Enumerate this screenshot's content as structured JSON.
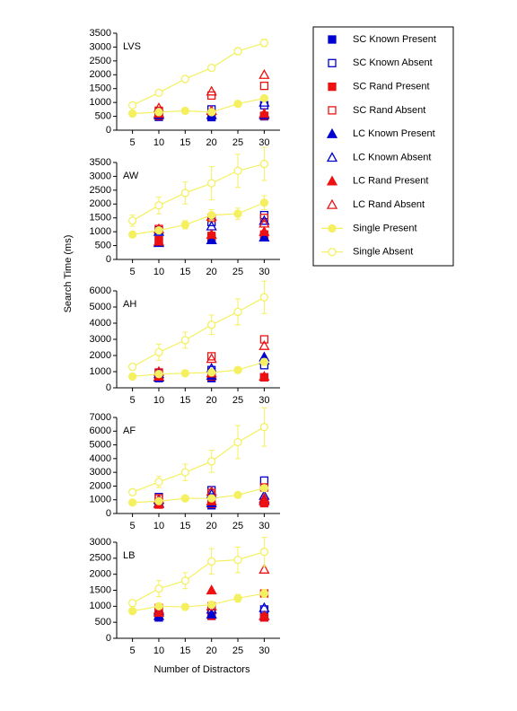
{
  "chart_data": {
    "type": "line",
    "x_label": "Number of Distractors",
    "y_label": "Search Time (ms)",
    "x": [
      5,
      10,
      15,
      20,
      25,
      30
    ],
    "xlim": [
      2,
      33
    ],
    "xticks": [
      5,
      10,
      15,
      20,
      25,
      30
    ],
    "legend": [
      {
        "name": "SC Known Present",
        "color": "#0000d0",
        "marker": "square",
        "filled": true,
        "line": false
      },
      {
        "name": "SC Known Absent",
        "color": "#0000d0",
        "marker": "square",
        "filled": false,
        "line": false
      },
      {
        "name": "SC Rand Present",
        "color": "#ee1111",
        "marker": "square",
        "filled": true,
        "line": false
      },
      {
        "name": "SC Rand Absent",
        "color": "#ee1111",
        "marker": "square",
        "filled": false,
        "line": false
      },
      {
        "name": "LC Known Present",
        "color": "#0000d0",
        "marker": "triangle",
        "filled": true,
        "line": false
      },
      {
        "name": "LC Known Absent",
        "color": "#0000d0",
        "marker": "triangle",
        "filled": false,
        "line": false
      },
      {
        "name": "LC Rand Present",
        "color": "#ee1111",
        "marker": "triangle",
        "filled": true,
        "line": false
      },
      {
        "name": "LC Rand Absent",
        "color": "#ee1111",
        "marker": "triangle",
        "filled": false,
        "line": false
      },
      {
        "name": "Single Present",
        "color": "#f4f060",
        "marker": "circle",
        "filled": true,
        "line": true
      },
      {
        "name": "Single Absent",
        "color": "#f4f060",
        "marker": "circle",
        "filled": false,
        "line": true
      }
    ],
    "panels": [
      {
        "title": "LVS",
        "ylim": [
          0,
          3500
        ],
        "yticks": [
          0,
          500,
          1000,
          1500,
          2000,
          2500,
          3000,
          3500
        ],
        "series": [
          {
            "values": [
              null,
              480,
              null,
              470,
              null,
              500
            ]
          },
          {
            "values": [
              null,
              650,
              null,
              750,
              null,
              900
            ]
          },
          {
            "values": [
              null,
              520,
              null,
              600,
              null,
              520
            ]
          },
          {
            "values": [
              null,
              700,
              null,
              1250,
              null,
              1600
            ]
          },
          {
            "values": [
              null,
              550,
              null,
              550,
              null,
              550
            ]
          },
          {
            "values": [
              null,
              600,
              null,
              700,
              null,
              1000
            ]
          },
          {
            "values": [
              null,
              600,
              null,
              700,
              null,
              600
            ]
          },
          {
            "values": [
              null,
              800,
              null,
              1400,
              null,
              2000
            ]
          },
          {
            "values": [
              600,
              650,
              700,
              650,
              950,
              1150
            ],
            "errors": [
              40,
              40,
              40,
              40,
              40,
              60
            ]
          },
          {
            "values": [
              900,
              1350,
              1850,
              2250,
              2850,
              3150
            ],
            "errors": [
              50,
              60,
              80,
              100,
              120,
              130
            ]
          }
        ]
      },
      {
        "title": "AW",
        "ylim": [
          0,
          3500
        ],
        "yticks": [
          0,
          500,
          1000,
          1500,
          2000,
          2500,
          3000,
          3500
        ],
        "series": [
          {
            "values": [
              null,
              650,
              null,
              750,
              null,
              850
            ]
          },
          {
            "values": [
              null,
              1050,
              null,
              1350,
              null,
              1600
            ]
          },
          {
            "values": [
              null,
              700,
              null,
              850,
              null,
              900
            ]
          },
          {
            "values": [
              null,
              1100,
              null,
              1500,
              null,
              1500
            ]
          },
          {
            "values": [
              null,
              600,
              null,
              700,
              null,
              800
            ]
          },
          {
            "values": [
              null,
              1000,
              null,
              1200,
              null,
              1400
            ]
          },
          {
            "values": [
              null,
              650,
              null,
              900,
              null,
              1000
            ]
          },
          {
            "values": [
              null,
              1100,
              null,
              1550,
              null,
              1300
            ]
          },
          {
            "values": [
              900,
              1050,
              1250,
              1600,
              1650,
              2050
            ],
            "errors": [
              80,
              100,
              150,
              200,
              200,
              250
            ]
          },
          {
            "values": [
              1400,
              1950,
              2400,
              2750,
              3200,
              3450
            ],
            "errors": [
              200,
              300,
              400,
              600,
              600,
              600
            ]
          }
        ]
      },
      {
        "title": "AH",
        "ylim": [
          0,
          6000
        ],
        "yticks": [
          0,
          1000,
          2000,
          3000,
          4000,
          5000,
          6000
        ],
        "series": [
          {
            "values": [
              null,
              600,
              null,
              600,
              null,
              650
            ]
          },
          {
            "values": [
              null,
              900,
              null,
              1100,
              null,
              1400
            ]
          },
          {
            "values": [
              null,
              650,
              null,
              700,
              null,
              650
            ]
          },
          {
            "values": [
              null,
              950,
              null,
              1950,
              null,
              3000
            ]
          },
          {
            "values": [
              null,
              650,
              null,
              750,
              null,
              1900
            ]
          },
          {
            "values": [
              null,
              850,
              null,
              1200,
              null,
              1700
            ]
          },
          {
            "values": [
              null,
              700,
              null,
              900,
              null,
              700
            ]
          },
          {
            "values": [
              null,
              1000,
              null,
              1800,
              null,
              2600
            ]
          },
          {
            "values": [
              700,
              850,
              900,
              950,
              1100,
              1600
            ],
            "errors": [
              60,
              80,
              80,
              100,
              100,
              200
            ]
          },
          {
            "values": [
              1300,
              2200,
              2950,
              3900,
              4700,
              5600
            ],
            "errors": [
              200,
              500,
              500,
              600,
              800,
              1000
            ]
          }
        ]
      },
      {
        "title": "AF",
        "ylim": [
          0,
          7000
        ],
        "yticks": [
          0,
          1000,
          2000,
          3000,
          4000,
          5000,
          6000,
          7000
        ],
        "series": [
          {
            "values": [
              null,
              700,
              null,
              600,
              null,
              800
            ]
          },
          {
            "values": [
              null,
              1200,
              null,
              1700,
              null,
              2400
            ]
          },
          {
            "values": [
              null,
              650,
              null,
              700,
              null,
              750
            ]
          },
          {
            "values": [
              null,
              1100,
              null,
              1500,
              null,
              1900
            ]
          },
          {
            "values": [
              null,
              750,
              null,
              750,
              null,
              1000
            ]
          },
          {
            "values": [
              null,
              1000,
              null,
              1400,
              null,
              1300
            ]
          },
          {
            "values": [
              null,
              700,
              null,
              900,
              null,
              900
            ]
          },
          {
            "values": [
              null,
              1050,
              null,
              1600,
              null,
              1100
            ]
          },
          {
            "values": [
              800,
              900,
              1100,
              1100,
              1350,
              1850
            ],
            "errors": [
              60,
              80,
              100,
              100,
              120,
              200
            ]
          },
          {
            "values": [
              1550,
              2300,
              3000,
              3800,
              5200,
              6300
            ],
            "errors": [
              200,
              400,
              600,
              800,
              1200,
              1400
            ]
          }
        ]
      },
      {
        "title": "LB",
        "ylim": [
          0,
          3000
        ],
        "yticks": [
          0,
          500,
          1000,
          1500,
          2000,
          2500,
          3000
        ],
        "series": [
          {
            "values": [
              null,
              650,
              null,
              700,
              null,
              650
            ]
          },
          {
            "values": [
              null,
              900,
              null,
              900,
              null,
              900
            ]
          },
          {
            "values": [
              null,
              700,
              null,
              700,
              null,
              650
            ]
          },
          {
            "values": [
              null,
              950,
              null,
              1000,
              null,
              1400
            ]
          },
          {
            "values": [
              null,
              700,
              null,
              750,
              null,
              700
            ]
          },
          {
            "values": [
              null,
              850,
              null,
              900,
              null,
              950
            ]
          },
          {
            "values": [
              null,
              800,
              null,
              1500,
              null,
              700
            ]
          },
          {
            "values": [
              null,
              900,
              null,
              1000,
              null,
              2150
            ]
          },
          {
            "values": [
              850,
              1000,
              980,
              1050,
              1250,
              1400
            ],
            "errors": [
              60,
              80,
              80,
              100,
              120,
              120
            ]
          },
          {
            "values": [
              1100,
              1550,
              1800,
              2400,
              2450,
              2700
            ],
            "errors": [
              100,
              250,
              250,
              400,
              400,
              450
            ]
          }
        ]
      }
    ]
  }
}
